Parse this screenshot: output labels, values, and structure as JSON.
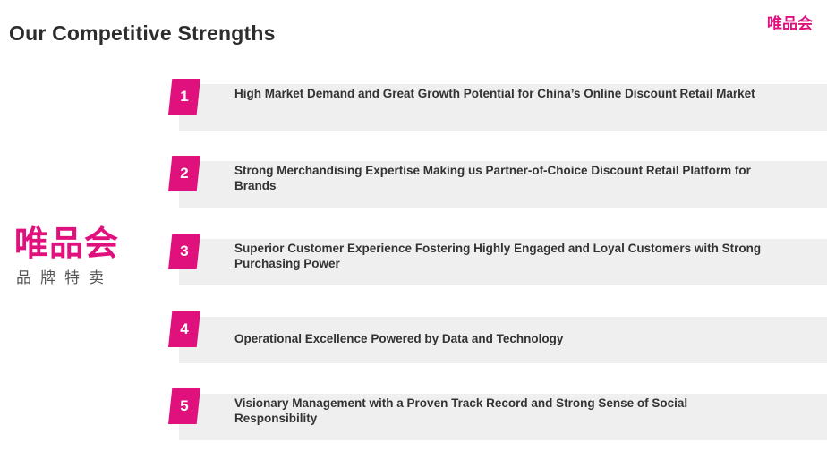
{
  "page_title": "Our Competitive Strengths",
  "corner_logo": "唯品会",
  "brand": {
    "name": "唯品会",
    "tagline": "品牌特卖"
  },
  "strengths": [
    {
      "number": "1",
      "text": "High Market Demand and Great Growth Potential for China’s Online Discount Retail Market"
    },
    {
      "number": "2",
      "text": "Strong Merchandising Expertise Making us Partner-of-Choice Discount Retail Platform for Brands"
    },
    {
      "number": "3",
      "text": "Superior Customer Experience Fostering Highly Engaged and Loyal Customers with Strong Purchasing Power"
    },
    {
      "number": "4",
      "text": "Operational Excellence Powered by Data and Technology"
    },
    {
      "number": "5",
      "text": "Visionary Management with a Proven Track Record and Strong Sense of Social Responsibility"
    }
  ],
  "colors": {
    "accent": "#e0117d",
    "bar": "#efefef",
    "text": "#333333"
  }
}
